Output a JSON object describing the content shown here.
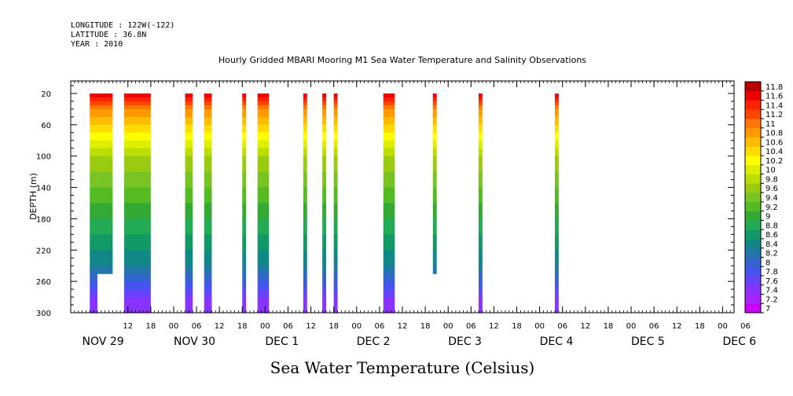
{
  "header": {
    "longitude": "LONGITUDE : 122W(-122)",
    "latitude": "LATITUDE : 36.8N",
    "year": "YEAR : 2010"
  },
  "chart_data": {
    "type": "heatmap",
    "title": "Hourly Gridded MBARI Mooring M1 Sea Water Temperature and Salinity Observations",
    "xlabel": "Sea Water Temperature (Celsius)",
    "ylabel": "DEPTH (m)",
    "xlim": [
      -3,
      171
    ],
    "ylim": [
      300,
      4
    ],
    "y_reversed": true,
    "x_units": "hours since Nov 29 2010 00:00",
    "x_hour_ticks": [
      {
        "h": 12,
        "label": "12"
      },
      {
        "h": 18,
        "label": "18"
      },
      {
        "h": 24,
        "label": "00"
      },
      {
        "h": 30,
        "label": "06"
      },
      {
        "h": 36,
        "label": "12"
      },
      {
        "h": 42,
        "label": "18"
      },
      {
        "h": 48,
        "label": "00"
      },
      {
        "h": 54,
        "label": "06"
      },
      {
        "h": 60,
        "label": "12"
      },
      {
        "h": 66,
        "label": "18"
      },
      {
        "h": 72,
        "label": "00"
      },
      {
        "h": 78,
        "label": "06"
      },
      {
        "h": 84,
        "label": "12"
      },
      {
        "h": 90,
        "label": "18"
      },
      {
        "h": 96,
        "label": "00"
      },
      {
        "h": 102,
        "label": "06"
      },
      {
        "h": 108,
        "label": "12"
      },
      {
        "h": 114,
        "label": "18"
      },
      {
        "h": 120,
        "label": "00"
      },
      {
        "h": 126,
        "label": "06"
      },
      {
        "h": 132,
        "label": "12"
      },
      {
        "h": 138,
        "label": "18"
      },
      {
        "h": 144,
        "label": "00"
      },
      {
        "h": 150,
        "label": "06"
      },
      {
        "h": 156,
        "label": "12"
      },
      {
        "h": 162,
        "label": "18"
      },
      {
        "h": 168,
        "label": "00"
      },
      {
        "h": 174,
        "label": "06"
      }
    ],
    "day_labels": [
      {
        "h": 0,
        "label": "NOV 29"
      },
      {
        "h": 24,
        "label": "NOV 30"
      },
      {
        "h": 48,
        "label": "DEC  1"
      },
      {
        "h": 72,
        "label": "DEC  2"
      },
      {
        "h": 96,
        "label": "DEC  3"
      },
      {
        "h": 120,
        "label": "DEC  4"
      },
      {
        "h": 144,
        "label": "DEC  5"
      },
      {
        "h": 168,
        "label": "DEC  6"
      }
    ],
    "y_ticks": [
      20,
      60,
      100,
      140,
      180,
      220,
      260,
      300
    ],
    "depth_range": [
      20,
      300
    ],
    "profile": {
      "depth": [
        20,
        40,
        60,
        80,
        100,
        120,
        140,
        160,
        180,
        200,
        220,
        240,
        260,
        280,
        300
      ],
      "temperature": [
        11.8,
        11.0,
        10.6,
        10.2,
        9.8,
        9.6,
        9.4,
        9.2,
        9.0,
        8.8,
        8.6,
        8.4,
        8.0,
        7.6,
        7.4
      ]
    },
    "data_segments": [
      {
        "start": 2.0,
        "end": 4.0,
        "max_depth": 300
      },
      {
        "start": 4.0,
        "end": 8.0,
        "max_depth": 250
      },
      {
        "start": 11.0,
        "end": 18.0,
        "max_depth": 300
      },
      {
        "start": 27.0,
        "end": 29.0,
        "max_depth": 300
      },
      {
        "start": 32.0,
        "end": 34.0,
        "max_depth": 300
      },
      {
        "start": 42.0,
        "end": 43.0,
        "max_depth": 300
      },
      {
        "start": 46.0,
        "end": 49.0,
        "max_depth": 300
      },
      {
        "start": 58.0,
        "end": 59.0,
        "max_depth": 300
      },
      {
        "start": 63.0,
        "end": 64.0,
        "max_depth": 300
      },
      {
        "start": 66.0,
        "end": 67.0,
        "max_depth": 300
      },
      {
        "start": 79.0,
        "end": 82.0,
        "max_depth": 300
      },
      {
        "start": 92.0,
        "end": 93.0,
        "max_depth": 250
      },
      {
        "start": 104.0,
        "end": 105.0,
        "max_depth": 300
      },
      {
        "start": 124.0,
        "end": 125.0,
        "max_depth": 300
      }
    ],
    "colorbar": {
      "levels": [
        7,
        7.2,
        7.4,
        7.6,
        7.8,
        8,
        8.2,
        8.4,
        8.6,
        8.8,
        9,
        9.2,
        9.4,
        9.6,
        9.8,
        10,
        10.2,
        10.4,
        10.6,
        10.8,
        11,
        11.2,
        11.4,
        11.6,
        11.8
      ],
      "colors": [
        "#cc00ff",
        "#aa22ff",
        "#8833ff",
        "#6644ff",
        "#4455ee",
        "#3366cc",
        "#2277aa",
        "#118888",
        "#119966",
        "#22aa55",
        "#33aa33",
        "#55bb22",
        "#77c422",
        "#99cc11",
        "#bbdd00",
        "#ddee00",
        "#ffff00",
        "#ffdd00",
        "#ffbb00",
        "#ff9900",
        "#ff7700",
        "#ff4400",
        "#ff2200",
        "#ee0000",
        "#bb0000"
      ]
    }
  }
}
